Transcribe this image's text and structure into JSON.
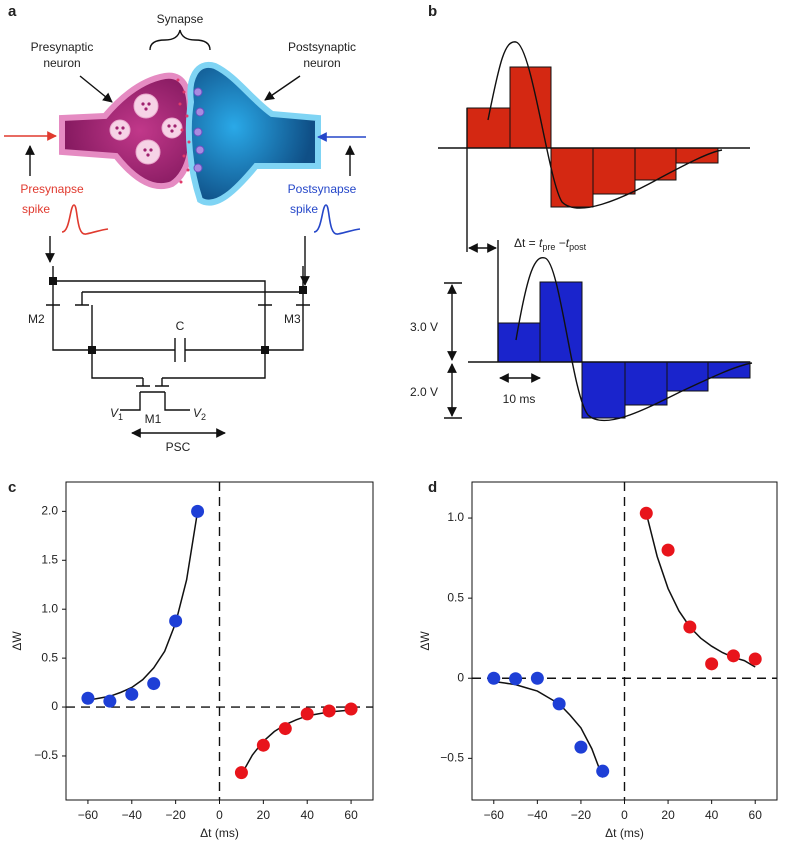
{
  "panel_labels": [
    "a",
    "b",
    "c",
    "d"
  ],
  "panel_a": {
    "synapse": "Synapse",
    "presynaptic_neuron": [
      "Presynaptic",
      "neuron"
    ],
    "postsynaptic_neuron": [
      "Postsynaptic",
      "neuron"
    ],
    "presynapse_spike": [
      "Presynapse",
      "spike"
    ],
    "postsynapse_spike": [
      "Postsynapse",
      "spike"
    ],
    "circuit": {
      "m2": "M2",
      "m3": "M3",
      "c": "C",
      "m1": "M1",
      "v1": {
        "main": "V",
        "sub": "1"
      },
      "v2": {
        "main": "V",
        "sub": "2"
      },
      "psc": "PSC"
    }
  },
  "panel_b": {
    "equation": {
      "lhs": "Δt = ",
      "t1": "t",
      "sub1": "pre",
      "minus": " −",
      "t2": "t",
      "sub2": "post"
    },
    "v_pos": "3.0 V",
    "v_neg": "2.0 V",
    "width": "10 ms"
  },
  "chart_data": [
    {
      "type": "scatter",
      "x_label": "Δt (ms)",
      "y_label": "ΔW",
      "xlim": [
        -70,
        70
      ],
      "ylim": [
        -0.95,
        2.3
      ],
      "xticks": [
        {
          "value": -60,
          "label": "−60"
        },
        {
          "value": -40,
          "label": "−40"
        },
        {
          "value": -20,
          "label": "−20"
        },
        0,
        20,
        40,
        60
      ],
      "yticks": [
        {
          "value": -0.5,
          "label": "−0.5"
        },
        0,
        0.5,
        {
          "value": 1.0,
          "label": "1.0"
        },
        1.5,
        {
          "value": 2.0,
          "label": "2.0"
        }
      ],
      "series": [
        {
          "color": "#1e3fd6",
          "x": [
            -60,
            -50,
            -40,
            -30,
            -20,
            -10
          ],
          "values": [
            0.09,
            0.06,
            0.13,
            0.24,
            0.88,
            2.0
          ]
        },
        {
          "color": "#e8141b",
          "x": [
            10,
            20,
            30,
            40,
            50,
            60
          ],
          "values": [
            -0.67,
            -0.39,
            -0.22,
            -0.07,
            -0.04,
            -0.02
          ]
        }
      ],
      "fits": [
        {
          "x": [
            -60,
            -55,
            -50,
            -45,
            -40,
            -35,
            -30,
            -25,
            -20,
            -15,
            -10
          ],
          "values": [
            0.07,
            0.09,
            0.11,
            0.15,
            0.2,
            0.28,
            0.4,
            0.57,
            0.86,
            1.3,
            2.0
          ]
        },
        {
          "x": [
            10,
            15,
            20,
            25,
            30,
            35,
            40,
            45,
            50,
            55,
            60
          ],
          "values": [
            -0.69,
            -0.49,
            -0.35,
            -0.25,
            -0.18,
            -0.13,
            -0.09,
            -0.07,
            -0.05,
            -0.04,
            -0.03
          ]
        }
      ]
    },
    {
      "type": "scatter",
      "x_label": "Δt (ms)",
      "y_label": "ΔW",
      "xlim": [
        -70,
        70
      ],
      "ylim": [
        -0.76,
        1.225
      ],
      "xticks": [
        {
          "value": -60,
          "label": "−60"
        },
        {
          "value": -40,
          "label": "−40"
        },
        {
          "value": -20,
          "label": "−20"
        },
        0,
        20,
        40,
        60
      ],
      "yticks": [
        {
          "value": -0.5,
          "label": "−0.5"
        },
        0,
        0.5,
        {
          "value": 1.0,
          "label": "1.0"
        }
      ],
      "series": [
        {
          "color": "#1e3fd6",
          "x": [
            -60,
            -50,
            -40,
            -30,
            -20,
            -10
          ],
          "values": [
            0,
            -0.003,
            0,
            -0.16,
            -0.43,
            -0.58
          ]
        },
        {
          "color": "#e8141b",
          "x": [
            10,
            20,
            30,
            40,
            50,
            60
          ],
          "values": [
            1.03,
            0.8,
            0.32,
            0.09,
            0.14,
            0.12
          ]
        }
      ],
      "fits": [
        {
          "x": [
            -60,
            -55,
            -50,
            -45,
            -40,
            -35,
            -30,
            -25,
            -20,
            -15,
            -10
          ],
          "values": [
            -0.02,
            -0.03,
            -0.04,
            -0.06,
            -0.08,
            -0.12,
            -0.16,
            -0.23,
            -0.31,
            -0.44,
            -0.62
          ]
        },
        {
          "x": [
            10,
            15,
            20,
            25,
            30,
            35,
            40,
            45,
            50,
            55,
            60
          ],
          "values": [
            1.03,
            0.76,
            0.56,
            0.42,
            0.32,
            0.25,
            0.2,
            0.16,
            0.13,
            0.11,
            0.07
          ]
        }
      ]
    }
  ]
}
